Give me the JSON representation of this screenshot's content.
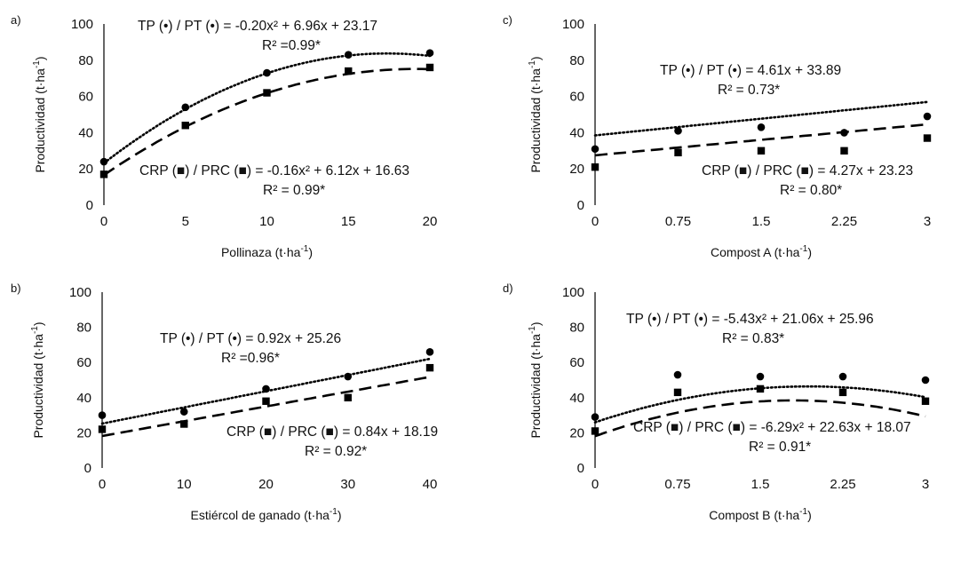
{
  "chart_data": [
    {
      "type": "scatter",
      "panel": "a)",
      "xlabel_main": "Pollinaza (t·ha",
      "xlabel_exp": "-1",
      "xlabel_end": ")",
      "ylabel_main": "Productividad (t·ha",
      "ylabel_exp": "-1",
      "ylabel_end": ")",
      "xticks": [
        0,
        5,
        10,
        15,
        20
      ],
      "xtick_labels": [
        "0",
        "5",
        "10",
        "15",
        "20"
      ],
      "xlim": [
        0,
        20
      ],
      "yticks": [
        0,
        20,
        40,
        60,
        80,
        100
      ],
      "ylim": [
        0,
        100
      ],
      "series": [
        {
          "name": "TP / PT",
          "marker": "circle",
          "line": "dotted",
          "x": [
            0,
            5,
            10,
            15,
            20
          ],
          "values": [
            24,
            54,
            73,
            83,
            84
          ],
          "fit": "poly2",
          "coef": [
            -0.2,
            6.96,
            23.17
          ],
          "eq_text": "TP (•) / PT (•)  = -0.20x² + 6.96x + 23.17",
          "r2_text": "R² =0.99*"
        },
        {
          "name": "CRP / PRC",
          "marker": "square",
          "line": "dashed",
          "x": [
            0,
            5,
            10,
            15,
            20
          ],
          "values": [
            17,
            44,
            62,
            74,
            76
          ],
          "fit": "poly2",
          "coef": [
            -0.16,
            6.12,
            16.63
          ],
          "eq_text": "CRP (■) / PRC (■) = -0.16x² + 6.12x + 16.63",
          "r2_text": "R² = 0.99*"
        }
      ]
    },
    {
      "type": "scatter",
      "panel": "c)",
      "xlabel_main": "Compost A (t·ha",
      "xlabel_exp": "-1",
      "xlabel_end": ")",
      "ylabel_main": "Productividad (t·ha",
      "ylabel_exp": "-1",
      "ylabel_end": ")",
      "xticks": [
        0,
        0.75,
        1.5,
        2.25,
        3
      ],
      "xtick_labels": [
        "0",
        "0.75",
        "1.5",
        "2.25",
        "3"
      ],
      "xlim": [
        0,
        3
      ],
      "yticks": [
        0,
        20,
        40,
        60,
        80,
        100
      ],
      "ylim": [
        0,
        100
      ],
      "series": [
        {
          "name": "TP / PT",
          "marker": "circle",
          "line": "dotted",
          "x": [
            0,
            0.75,
            1.5,
            2.25,
            3
          ],
          "values": [
            31,
            41,
            43,
            40,
            49
          ],
          "fit": "linear_index",
          "coef": [
            0,
            4.61,
            33.89
          ],
          "eq_text": "TP (•) / PT (•)  = 4.61x + 33.89",
          "r2_text": "R² = 0.73*"
        },
        {
          "name": "CRP / PRC",
          "marker": "square",
          "line": "dashed",
          "x": [
            0,
            0.75,
            1.5,
            2.25,
            3
          ],
          "values": [
            21,
            29,
            30,
            30,
            37
          ],
          "fit": "linear_index",
          "coef": [
            0,
            4.27,
            23.23
          ],
          "eq_text": "CRP (■) / PRC (■) = 4.27x + 23.23",
          "r2_text": "R² = 0.80*"
        }
      ]
    },
    {
      "type": "scatter",
      "panel": "b)",
      "xlabel_main": "Estiércol de ganado (t·ha",
      "xlabel_exp": "-1",
      "xlabel_end": ")",
      "ylabel_main": "Productividad (t·ha",
      "ylabel_exp": "-1",
      "ylabel_end": ")",
      "xticks": [
        0,
        10,
        20,
        30,
        40
      ],
      "xtick_labels": [
        "0",
        "10",
        "20",
        "30",
        "40"
      ],
      "xlim": [
        0,
        40
      ],
      "yticks": [
        0,
        20,
        40,
        60,
        80,
        100
      ],
      "ylim": [
        0,
        100
      ],
      "series": [
        {
          "name": "TP / PT",
          "marker": "circle",
          "line": "dotted",
          "x": [
            0,
            10,
            20,
            30,
            40
          ],
          "values": [
            30,
            32,
            45,
            52,
            66
          ],
          "fit": "linear",
          "coef": [
            0,
            0.92,
            25.26
          ],
          "eq_text": "TP (•) / PT (•)  = 0.92x + 25.26",
          "r2_text": "R² =0.96*"
        },
        {
          "name": "CRP / PRC",
          "marker": "square",
          "line": "dashed",
          "x": [
            0,
            10,
            20,
            30,
            40
          ],
          "values": [
            22,
            25,
            38,
            40,
            57
          ],
          "fit": "linear",
          "coef": [
            0,
            0.84,
            18.19
          ],
          "eq_text": "CRP (■) / PRC (■) = 0.84x + 18.19",
          "r2_text": "R² = 0.92*"
        }
      ]
    },
    {
      "type": "scatter",
      "panel": "d)",
      "xlabel_main": "Compost B (t·ha",
      "xlabel_exp": "-1",
      "xlabel_end": ")",
      "ylabel_main": "Productividad (t·ha",
      "ylabel_exp": "-1",
      "ylabel_end": ")",
      "xticks": [
        0,
        0.75,
        1.5,
        2.25,
        3
      ],
      "xtick_labels": [
        "0",
        "0.75",
        "1.5",
        "2.25",
        "3"
      ],
      "xlim": [
        0,
        3
      ],
      "yticks": [
        0,
        20,
        40,
        60,
        80,
        100
      ],
      "ylim": [
        0,
        100
      ],
      "series": [
        {
          "name": "TP / PT",
          "marker": "circle",
          "line": "dotted",
          "x": [
            0,
            0.75,
            1.5,
            2.25,
            3
          ],
          "values": [
            29,
            53,
            52,
            52,
            50
          ],
          "fit": "poly2",
          "coef": [
            -5.43,
            21.06,
            25.96
          ],
          "eq_text": "TP (•) / PT (•)  = -5.43x² + 21.06x + 25.96",
          "r2_text": "R² = 0.83*"
        },
        {
          "name": "CRP / PRC",
          "marker": "square",
          "line": "dashed",
          "x": [
            0,
            0.75,
            1.5,
            2.25,
            3
          ],
          "values": [
            21,
            43,
            45,
            43,
            38
          ],
          "fit": "poly2",
          "coef": [
            -6.29,
            22.63,
            18.07
          ],
          "eq_text": "CRP (■) / PRC (■) = -6.29x² + 22.63x + 18.07",
          "r2_text": "R² = 0.91*"
        }
      ]
    }
  ]
}
